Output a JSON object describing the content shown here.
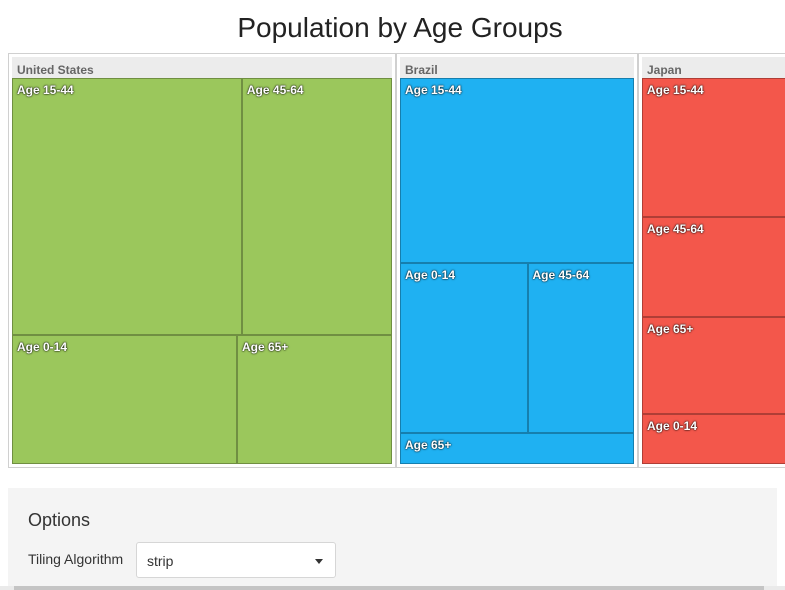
{
  "chart_data": {
    "type": "treemap",
    "title": "Population by Age Groups",
    "groups": [
      {
        "name": "United States",
        "color": "#9bc75c",
        "items": [
          {
            "label": "Age 15-44",
            "value": 133
          },
          {
            "label": "Age 45-64",
            "value": 84
          },
          {
            "label": "Age 0-14",
            "value": 61
          },
          {
            "label": "Age 65+",
            "value": 47
          }
        ]
      },
      {
        "name": "Brazil",
        "color": "#1fb1f2",
        "items": [
          {
            "label": "Age 15-44",
            "value": 93
          },
          {
            "label": "Age 0-14",
            "value": 45
          },
          {
            "label": "Age 45-64",
            "value": 38
          },
          {
            "label": "Age 65+",
            "value": 14
          }
        ]
      },
      {
        "name": "Japan",
        "color": "#f3574b",
        "items": [
          {
            "label": "Age 15-44",
            "value": 47
          },
          {
            "label": "Age 45-64",
            "value": 34
          },
          {
            "label": "Age 65+",
            "value": 33
          },
          {
            "label": "Age 0-14",
            "value": 17
          }
        ]
      }
    ]
  },
  "options": {
    "title": "Options",
    "tiling_label": "Tiling Algorithm",
    "tiling_value": "strip"
  }
}
